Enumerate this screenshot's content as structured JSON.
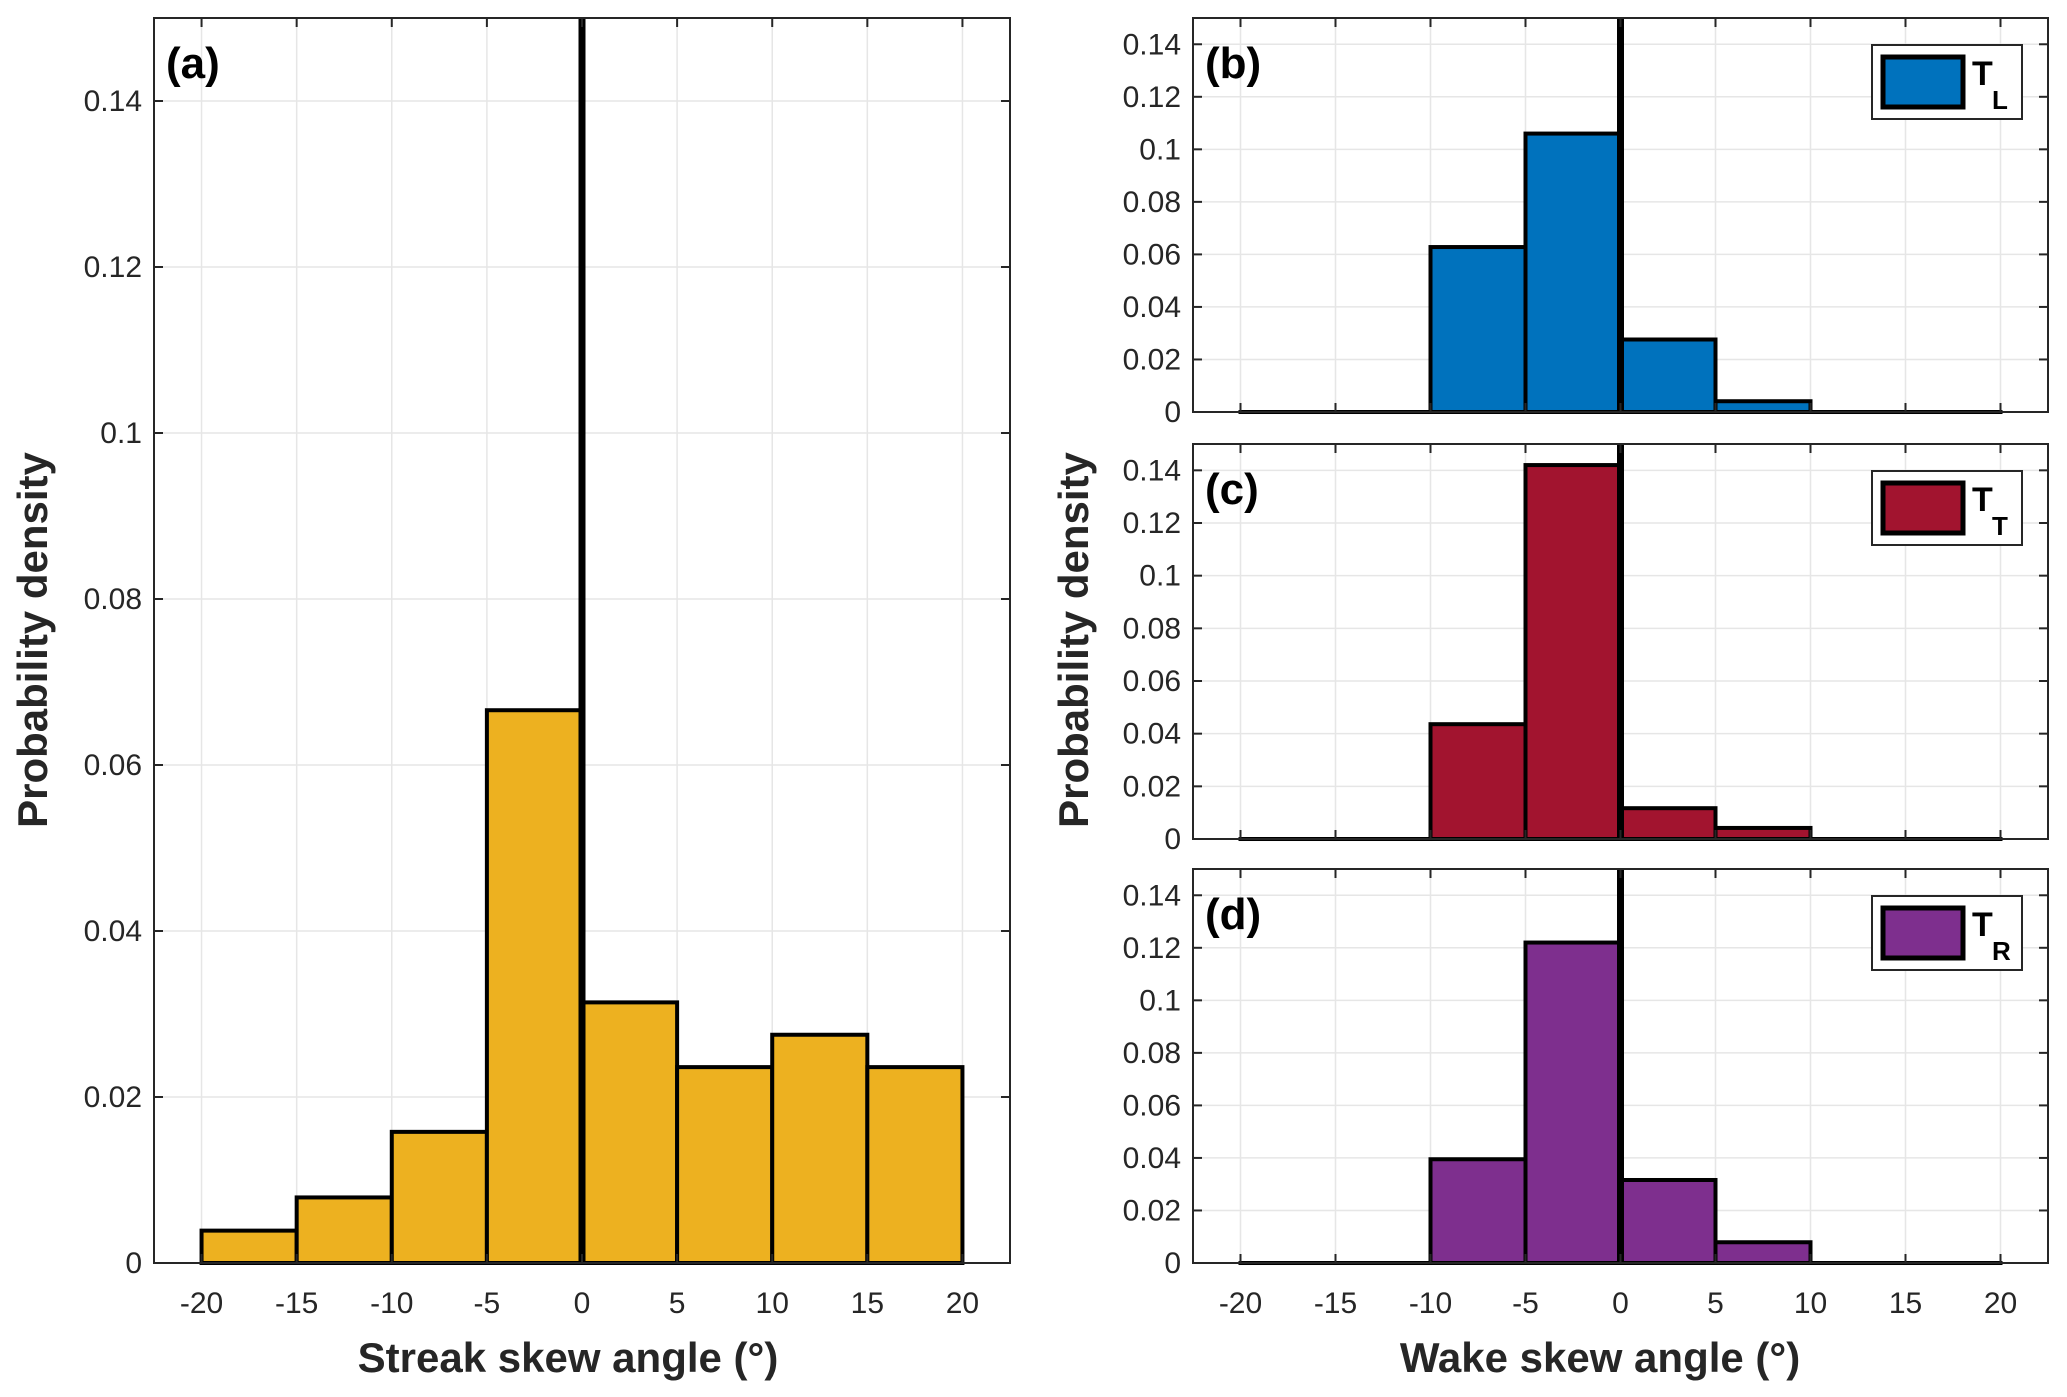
{
  "chart_data": [
    {
      "id": "a",
      "type": "bar",
      "panel_label": "(a)",
      "title": "",
      "xlabel": "Streak skew angle (°)",
      "ylabel": "Probability density",
      "bin_edges": [
        -20,
        -15,
        -10,
        -5,
        0,
        5,
        10,
        15,
        20
      ],
      "values": [
        0.0039,
        0.0079,
        0.0158,
        0.0666,
        0.0314,
        0.0236,
        0.0275,
        0.0236
      ],
      "color": "#EDB120",
      "xlim": [
        -22.5,
        22.5
      ],
      "ylim": [
        0,
        0.15
      ],
      "xticks": [
        "-20",
        "-15",
        "-10",
        "-5",
        "0",
        "5",
        "10",
        "15",
        "20"
      ],
      "yticks": [
        "0",
        "0.02",
        "0.04",
        "0.06",
        "0.08",
        "0.1",
        "0.12",
        "0.14"
      ],
      "ytick_values": [
        0,
        0.02,
        0.04,
        0.06,
        0.08,
        0.1,
        0.12,
        0.14
      ],
      "xtick_values": [
        -20,
        -15,
        -10,
        -5,
        0,
        5,
        10,
        15,
        20
      ],
      "reference_line_x": 0,
      "grid": true,
      "legend": null
    },
    {
      "id": "b",
      "type": "bar",
      "panel_label": "(b)",
      "title": "",
      "xlabel": "",
      "ylabel": "",
      "bin_edges": [
        -20,
        -15,
        -10,
        -5,
        0,
        5,
        10,
        15,
        20
      ],
      "values": [
        0,
        0,
        0.0628,
        0.106,
        0.0276,
        0.0041,
        0,
        0
      ],
      "color": "#0072BD",
      "xlim": [
        -22.5,
        22.5
      ],
      "ylim": [
        0,
        0.15
      ],
      "xticks": [],
      "yticks": [
        "0",
        "0.02",
        "0.04",
        "0.06",
        "0.08",
        "0.1",
        "0.12",
        "0.14"
      ],
      "ytick_values": [
        0,
        0.02,
        0.04,
        0.06,
        0.08,
        0.1,
        0.12,
        0.14
      ],
      "xtick_values": [
        -20,
        -15,
        -10,
        -5,
        0,
        5,
        10,
        15,
        20
      ],
      "reference_line_x": 0,
      "grid": true,
      "legend": {
        "label": "T",
        "subscript": "L",
        "position": "top-right"
      }
    },
    {
      "id": "c",
      "type": "bar",
      "panel_label": "(c)",
      "title": "",
      "xlabel": "",
      "ylabel": "Probability density",
      "bin_edges": [
        -20,
        -15,
        -10,
        -5,
        0,
        5,
        10,
        15,
        20
      ],
      "values": [
        0,
        0,
        0.0436,
        0.142,
        0.0117,
        0.0042,
        0,
        0
      ],
      "color": "#A2142F",
      "xlim": [
        -22.5,
        22.5
      ],
      "ylim": [
        0,
        0.15
      ],
      "xticks": [],
      "yticks": [
        "0",
        "0.02",
        "0.04",
        "0.06",
        "0.08",
        "0.1",
        "0.12",
        "0.14"
      ],
      "ytick_values": [
        0,
        0.02,
        0.04,
        0.06,
        0.08,
        0.1,
        0.12,
        0.14
      ],
      "xtick_values": [
        -20,
        -15,
        -10,
        -5,
        0,
        5,
        10,
        15,
        20
      ],
      "reference_line_x": 0,
      "grid": true,
      "legend": {
        "label": "T",
        "subscript": "T",
        "position": "top-right"
      }
    },
    {
      "id": "d",
      "type": "bar",
      "panel_label": "(d)",
      "title": "",
      "xlabel": "Wake skew angle (°)",
      "ylabel": "",
      "bin_edges": [
        -20,
        -15,
        -10,
        -5,
        0,
        5,
        10,
        15,
        20
      ],
      "values": [
        0,
        0,
        0.0395,
        0.122,
        0.0316,
        0.0079,
        0,
        0
      ],
      "color": "#7E2F8E",
      "xlim": [
        -22.5,
        22.5
      ],
      "ylim": [
        0,
        0.15
      ],
      "xticks": [
        "-20",
        "-15",
        "-10",
        "-5",
        "0",
        "5",
        "10",
        "15",
        "20"
      ],
      "yticks": [
        "0",
        "0.02",
        "0.04",
        "0.06",
        "0.08",
        "0.1",
        "0.12",
        "0.14"
      ],
      "ytick_values": [
        0,
        0.02,
        0.04,
        0.06,
        0.08,
        0.1,
        0.12,
        0.14
      ],
      "xtick_values": [
        -20,
        -15,
        -10,
        -5,
        0,
        5,
        10,
        15,
        20
      ],
      "reference_line_x": 0,
      "grid": true,
      "legend": {
        "label": "T",
        "subscript": "R",
        "position": "top-right"
      }
    }
  ],
  "figure": {
    "left_ylabel": "Probability density",
    "right_ylabel": "Probability density",
    "left_xlabel": "Streak skew angle (°)",
    "right_xlabel": "Wake skew angle (°)"
  }
}
